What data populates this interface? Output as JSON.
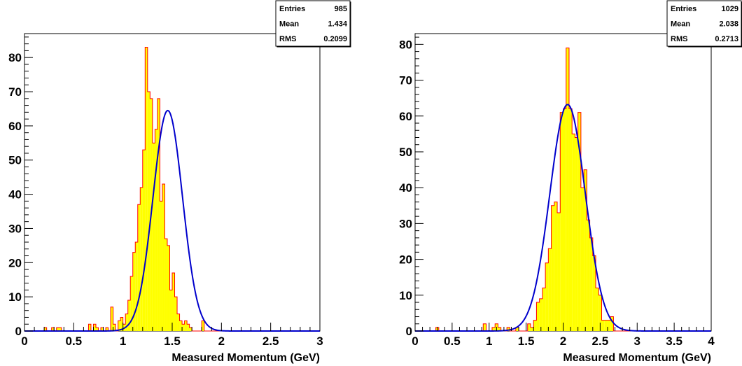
{
  "chart_data": [
    {
      "type": "bar",
      "histogram_color": "#ffff00",
      "histogram_line_color": "#ff0000",
      "fit_color": "#0000cc",
      "xlabel": "Measured Momentum (GeV)",
      "ylabel": "",
      "xlim": [
        0,
        3
      ],
      "ylim": [
        0,
        87
      ],
      "x_ticks": [
        "0",
        "0.5",
        "1",
        "1.5",
        "2",
        "2.5",
        "3"
      ],
      "y_ticks": [
        "0",
        "10",
        "20",
        "30",
        "40",
        "50",
        "60",
        "70",
        "80"
      ],
      "bin_width": 0.025,
      "x_start": 0,
      "values": [
        0,
        0,
        0,
        0,
        0,
        0,
        0,
        0,
        1,
        0,
        0,
        1,
        0,
        1,
        1,
        0,
        0,
        0,
        0,
        0,
        0,
        0,
        0,
        0,
        0,
        0,
        2,
        0,
        2,
        1,
        0,
        1,
        0,
        1,
        0,
        7,
        2,
        0,
        3,
        4,
        2,
        5,
        9,
        16,
        23,
        26,
        37,
        42,
        53,
        83,
        70,
        68,
        55,
        59,
        68,
        38,
        43,
        27,
        25,
        12,
        17,
        10,
        5,
        3,
        2,
        3,
        2,
        1,
        0,
        0,
        0,
        0,
        3,
        0,
        0,
        0,
        0,
        0,
        0,
        0,
        0,
        0,
        0,
        0,
        0,
        0,
        0,
        0,
        0,
        0,
        0,
        0,
        0,
        0,
        0,
        0,
        0,
        0,
        0,
        0,
        0,
        0,
        0,
        0,
        0,
        0,
        0,
        0,
        0,
        0,
        0,
        0,
        0,
        0,
        0,
        0,
        0,
        0,
        0,
        0
      ],
      "fit": {
        "type": "gaussian",
        "constant": 64.5,
        "mean": 1.455,
        "sigma": 0.15
      },
      "stats": {
        "title": "",
        "rows": [
          [
            "Entries",
            "985"
          ],
          [
            "Mean",
            "1.434"
          ],
          [
            "RMS",
            "0.2099"
          ]
        ]
      }
    },
    {
      "type": "bar",
      "histogram_color": "#ffff00",
      "histogram_line_color": "#ff0000",
      "fit_color": "#0000cc",
      "xlabel": "Measured Momentum (GeV)",
      "ylabel": "",
      "xlim": [
        0,
        4
      ],
      "ylim": [
        0,
        83
      ],
      "x_ticks": [
        "0",
        "0.5",
        "1",
        "1.5",
        "2",
        "2.5",
        "3",
        "3.5",
        "4"
      ],
      "y_ticks": [
        "0",
        "10",
        "20",
        "30",
        "40",
        "50",
        "60",
        "70",
        "80"
      ],
      "bin_width": 0.04,
      "x_start": 0,
      "values": [
        0,
        0,
        0,
        0,
        0,
        0,
        0,
        1,
        0,
        0,
        0,
        0,
        0,
        0,
        0,
        0,
        0,
        0,
        0,
        0,
        0,
        0,
        0,
        2,
        0,
        0,
        1,
        2,
        1,
        0,
        0,
        1,
        0,
        0,
        1,
        0,
        0,
        0,
        2,
        1,
        3,
        8,
        9,
        12,
        19,
        23,
        35,
        36,
        33,
        61,
        62,
        79,
        62,
        55,
        54,
        61,
        40,
        45,
        31,
        26,
        21,
        12,
        10,
        3,
        3,
        3,
        4,
        0,
        0,
        0,
        0,
        0,
        0,
        0,
        0,
        0,
        0,
        0,
        0,
        0,
        0,
        0,
        0,
        0,
        0,
        0,
        0,
        0,
        0,
        0,
        0,
        0,
        0,
        0,
        0,
        0,
        0,
        0,
        0,
        0
      ],
      "fit": {
        "type": "gaussian",
        "constant": 63.2,
        "mean": 2.06,
        "sigma": 0.24
      },
      "stats": {
        "title": "",
        "rows": [
          [
            "Entries",
            "1029"
          ],
          [
            "Mean",
            "2.038"
          ],
          [
            "RMS",
            "0.2713"
          ]
        ]
      }
    }
  ]
}
